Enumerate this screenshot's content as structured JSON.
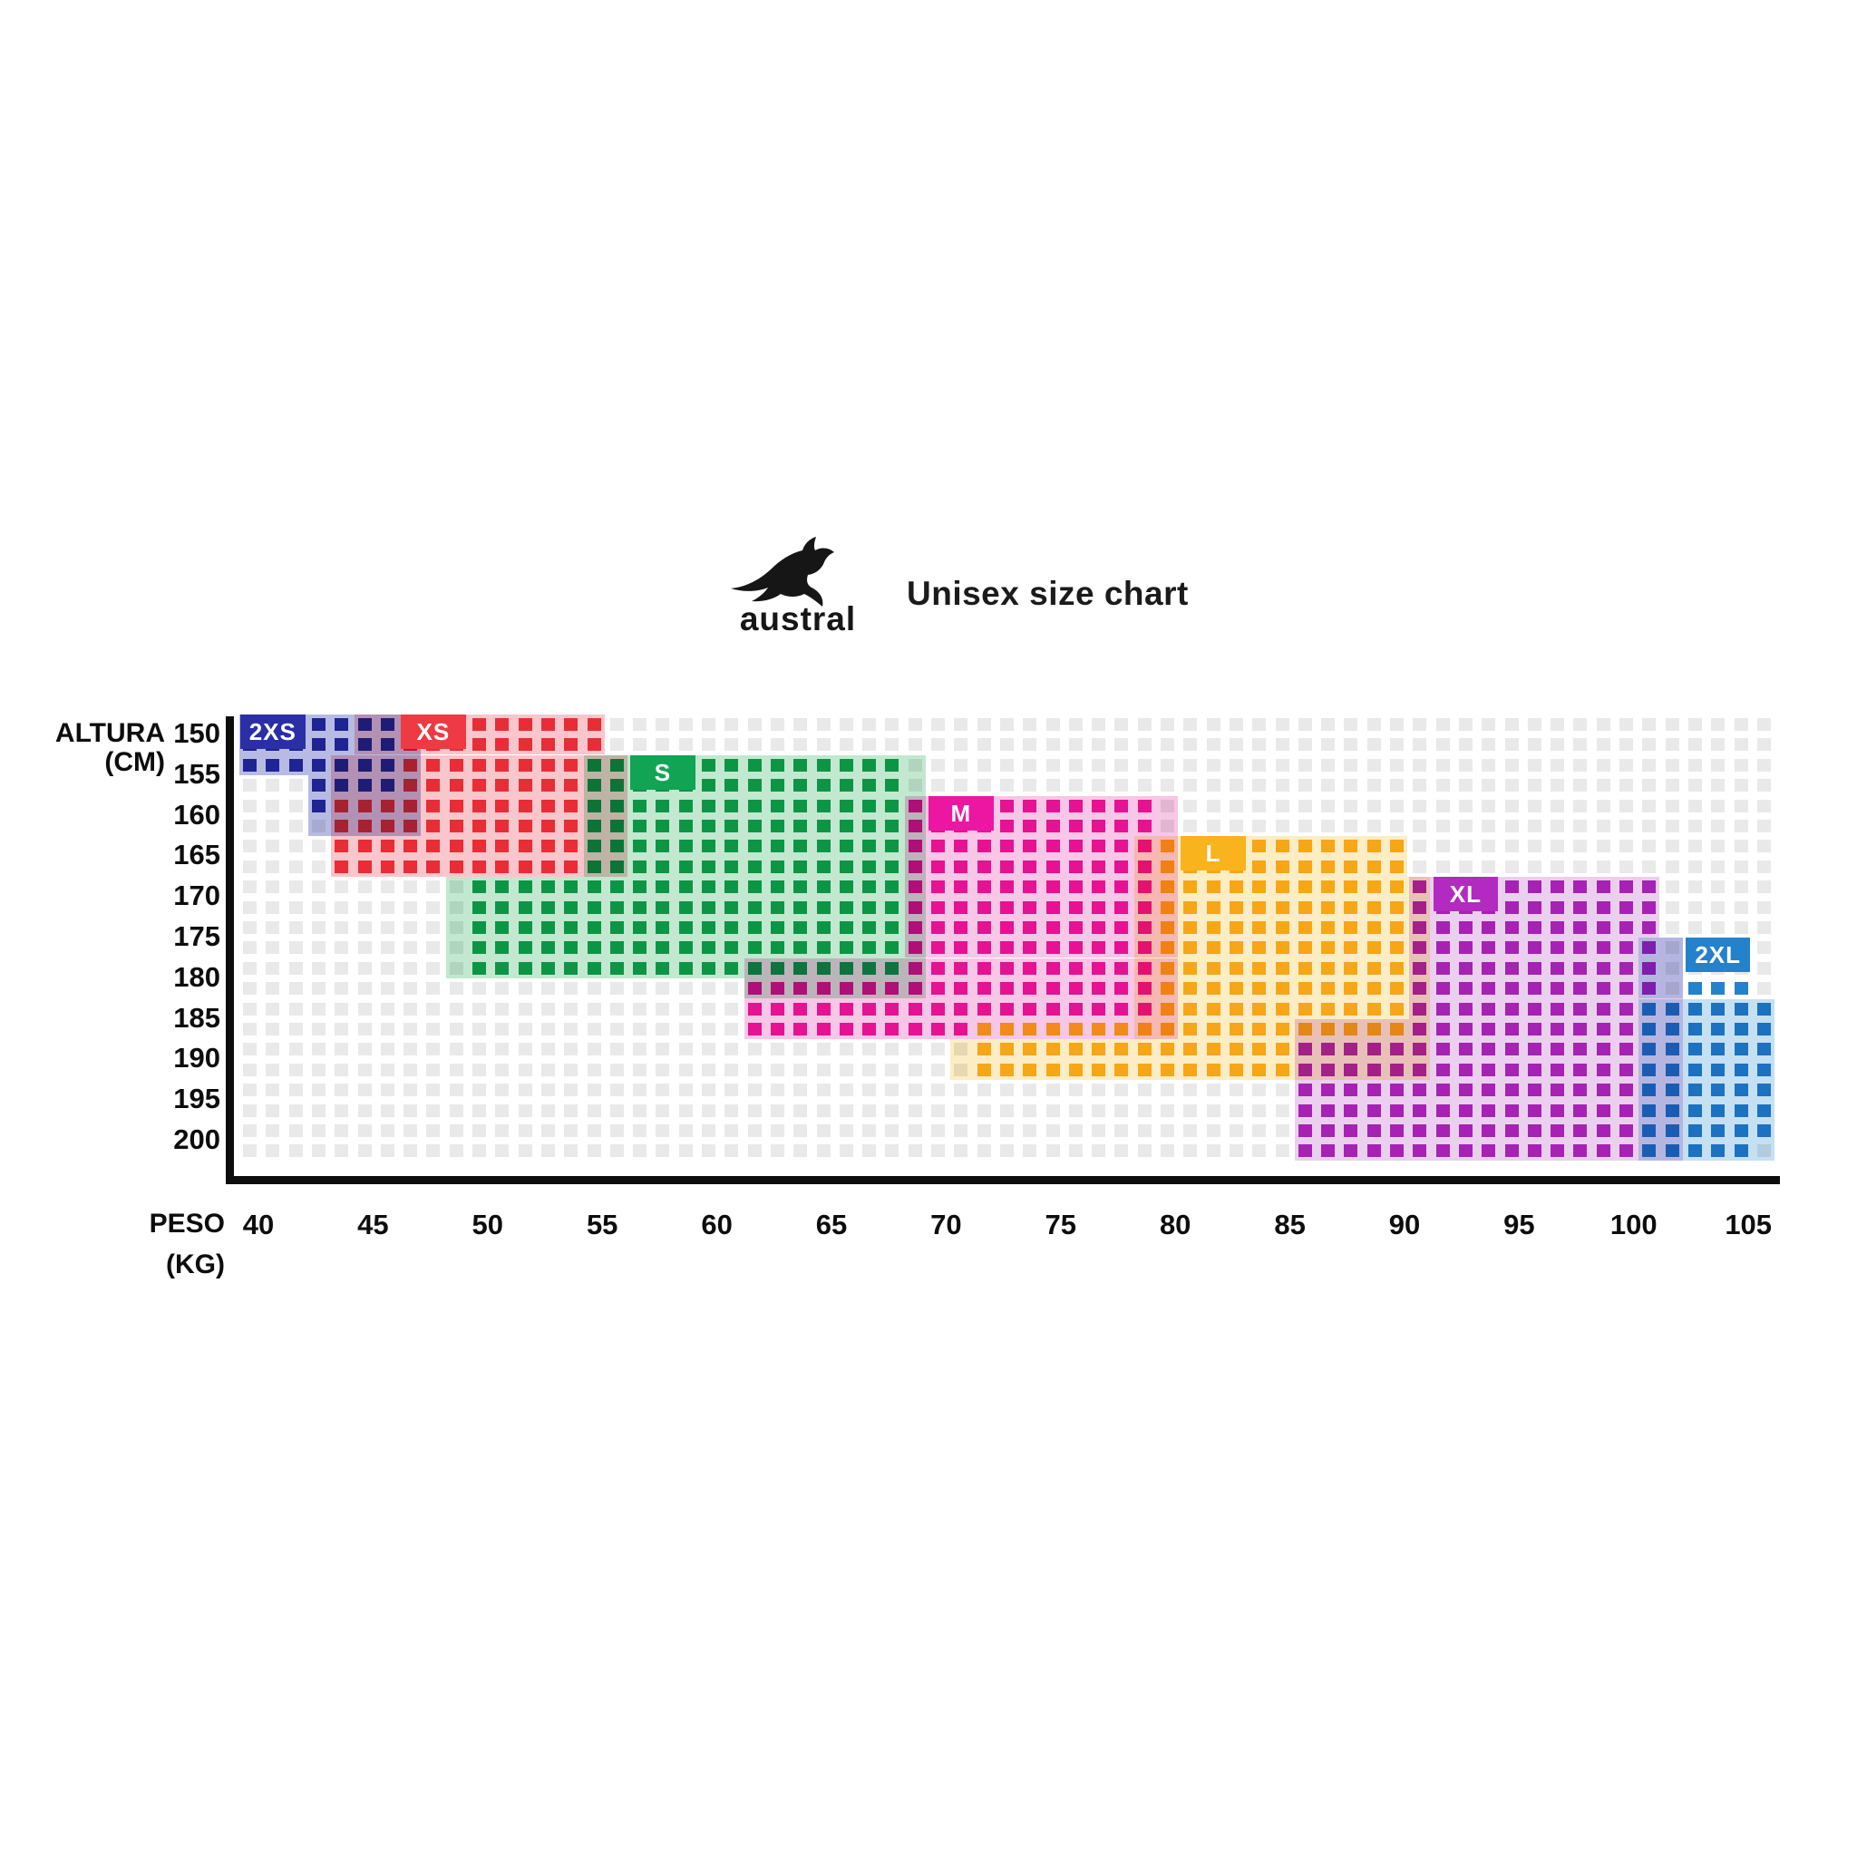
{
  "header": {
    "brand_wordmark": "austral",
    "logo_icon": "kangaroo-icon",
    "title": "Unisex size chart"
  },
  "y_axis": {
    "title_line1": "ALTURA",
    "title_line2": "(CM)",
    "ticks": [
      "150",
      "155",
      "160",
      "165",
      "170",
      "175",
      "180",
      "185",
      "190",
      "195",
      "200"
    ]
  },
  "x_axis": {
    "title_line1": "PESO",
    "title_line2": "(KG)",
    "ticks": [
      "40",
      "45",
      "50",
      "55",
      "60",
      "65",
      "70",
      "75",
      "80",
      "85",
      "90",
      "95",
      "100",
      "105"
    ]
  },
  "colors": {
    "grid_square": "#e9e9e9",
    "axis_line": "#0d0d0d",
    "title_text": "#1b1b1b"
  },
  "chart_data": {
    "type": "heatmap",
    "title": "Unisex size chart",
    "xlabel": "PESO (KG)",
    "ylabel": "ALTURA (CM)",
    "x_ticks": [
      40,
      45,
      50,
      55,
      60,
      65,
      70,
      75,
      80,
      85,
      90,
      95,
      100,
      105
    ],
    "y_ticks": [
      150,
      155,
      160,
      165,
      170,
      175,
      180,
      185,
      190,
      195,
      200
    ],
    "grid": {
      "rows": 22,
      "cols": 67,
      "col1_kg": 40,
      "kg_per_col": 1,
      "row1_cm": 150,
      "cm_per_row": 2.5
    },
    "sizes": [
      {
        "label": "2XS",
        "color": "#2b2fa6",
        "tint": "#b7bbe3",
        "approx_weight_kg": [
          40,
          46
        ],
        "approx_height_cm": [
          150,
          161
        ],
        "solid_rects": [
          [
            1,
            3,
            1,
            7
          ],
          [
            4,
            5,
            4,
            7
          ]
        ],
        "tint_rects": [
          [
            1,
            3,
            1,
            8
          ],
          [
            4,
            6,
            4,
            8
          ]
        ],
        "tag": {
          "row": 1,
          "col": 1
        }
      },
      {
        "label": "XS",
        "color": "#ee3a43",
        "tint": "#f9c6cb",
        "approx_weight_kg": [
          44,
          55
        ],
        "approx_height_cm": [
          150,
          168
        ],
        "solid_rects": [
          [
            1,
            2,
            8,
            16
          ],
          [
            3,
            4,
            8,
            15
          ],
          [
            5,
            8,
            5,
            15
          ]
        ],
        "tint_rects": [
          [
            1,
            2,
            6,
            16
          ],
          [
            3,
            8,
            5,
            17
          ]
        ],
        "tag": {
          "row": 1,
          "col": 8
        }
      },
      {
        "label": "S",
        "color": "#11a455",
        "tint": "#c2e8d0",
        "approx_weight_kg": [
          50,
          68
        ],
        "approx_height_cm": [
          155,
          180
        ],
        "solid_rects": [
          [
            3,
            8,
            16,
            29
          ],
          [
            9,
            13,
            11,
            29
          ]
        ],
        "tint_rects": [
          [
            3,
            8,
            16,
            30
          ],
          [
            9,
            13,
            10,
            30
          ],
          [
            14,
            14,
            23,
            30
          ]
        ],
        "tag": {
          "row": 3,
          "col": 18
        }
      },
      {
        "label": "M",
        "color": "#ec16a2",
        "tint": "#f8c6e6",
        "approx_weight_kg": [
          61,
          79
        ],
        "approx_height_cm": [
          160,
          186
        ],
        "solid_rects": [
          [
            5,
            13,
            30,
            40
          ],
          [
            14,
            15,
            23,
            40
          ],
          [
            16,
            16,
            23,
            32
          ]
        ],
        "tint_rects": [
          [
            5,
            12,
            30,
            41
          ],
          [
            13,
            16,
            23,
            41
          ]
        ],
        "tag": {
          "row": 5,
          "col": 31
        }
      },
      {
        "label": "L",
        "color": "#f9b31d",
        "tint": "#fdedc4",
        "approx_weight_kg": [
          71,
          90
        ],
        "approx_height_cm": [
          165,
          192
        ],
        "solid_rects": [
          [
            7,
            15,
            41,
            51
          ],
          [
            16,
            16,
            33,
            51
          ],
          [
            17,
            18,
            33,
            46
          ]
        ],
        "tint_rects": [
          [
            7,
            8,
            40,
            51
          ],
          [
            9,
            16,
            40,
            52
          ],
          [
            17,
            18,
            32,
            52
          ]
        ],
        "tag": {
          "row": 7,
          "col": 42
        }
      },
      {
        "label": "XL",
        "color": "#b32ac0",
        "tint": "#ebcfee",
        "approx_weight_kg": [
          85,
          100
        ],
        "approx_height_cm": [
          170,
          202
        ],
        "solid_rects": [
          [
            9,
            14,
            52,
            62
          ],
          [
            15,
            16,
            52,
            61
          ],
          [
            17,
            22,
            47,
            61
          ]
        ],
        "tint_rects": [
          [
            9,
            11,
            52,
            62
          ],
          [
            12,
            15,
            52,
            63
          ],
          [
            16,
            22,
            47,
            63
          ]
        ],
        "tag": {
          "row": 9,
          "col": 53
        }
      },
      {
        "label": "2XL",
        "color": "#2481cb",
        "tint": "#c4e0f2",
        "approx_weight_kg": [
          99,
          106
        ],
        "approx_height_cm": [
          177,
          202
        ],
        "solid_rects": [
          [
            14,
            14,
            64,
            66
          ],
          [
            15,
            21,
            62,
            67
          ],
          [
            22,
            22,
            62,
            66
          ]
        ],
        "tint_rects": [
          [
            12,
            14,
            62,
            63
          ],
          [
            15,
            22,
            62,
            67
          ]
        ],
        "tag": {
          "row": 12,
          "col": 64
        }
      }
    ]
  }
}
